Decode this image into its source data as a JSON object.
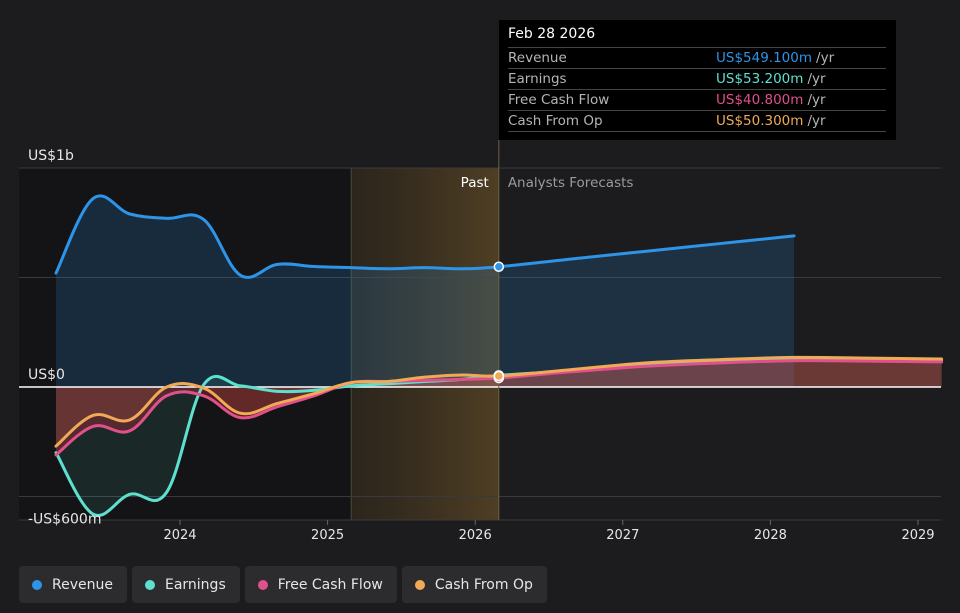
{
  "tooltip": {
    "date": "Feb 28 2026",
    "rows": [
      {
        "label": "Revenue",
        "value": "US$549.100m",
        "unit": "/yr",
        "color": "#2e94e8"
      },
      {
        "label": "Earnings",
        "value": "US$53.200m",
        "unit": "/yr",
        "color": "#5de0cf"
      },
      {
        "label": "Free Cash Flow",
        "value": "US$40.800m",
        "unit": "/yr",
        "color": "#e0508a"
      },
      {
        "label": "Cash From Op",
        "value": "US$50.300m",
        "unit": "/yr",
        "color": "#f0a956"
      }
    ]
  },
  "regions": {
    "past": "Past",
    "forecast": "Analysts Forecasts"
  },
  "legend": [
    {
      "label": "Revenue",
      "color": "#2e94e8"
    },
    {
      "label": "Earnings",
      "color": "#5de0cf"
    },
    {
      "label": "Free Cash Flow",
      "color": "#e0508a"
    },
    {
      "label": "Cash From Op",
      "color": "#f0a956"
    }
  ],
  "chart_data": {
    "type": "line",
    "title": "",
    "ylim": [
      -600,
      1000
    ],
    "y_ticks": [
      {
        "value": 1000,
        "label": "US$1b"
      },
      {
        "value": 0,
        "label": "US$0"
      },
      {
        "value": -600,
        "label": "-US$600m"
      }
    ],
    "x_ticks": [
      "2024",
      "2025",
      "2026",
      "2027",
      "2028",
      "2029"
    ],
    "xlim": [
      2023.14,
      2029.16
    ],
    "past_forecast_split": 2026.16,
    "highlight_range": [
      2025.16,
      2026.16
    ],
    "grid": true,
    "legend_position": "bottom",
    "series": [
      {
        "name": "Revenue",
        "color": "#2e94e8",
        "fill": true,
        "x": [
          2023.16,
          2023.41,
          2023.66,
          2023.91,
          2024.16,
          2024.41,
          2024.66,
          2024.91,
          2025.16,
          2025.41,
          2025.66,
          2025.91,
          2026.16,
          2026.66,
          2027.16,
          2027.66,
          2028.16
        ],
        "y": [
          520,
          860,
          790,
          770,
          765,
          510,
          560,
          550,
          545,
          540,
          545,
          540,
          549,
          585,
          620,
          655,
          690
        ]
      },
      {
        "name": "Earnings",
        "color": "#5de0cf",
        "fill": true,
        "x": [
          2023.16,
          2023.41,
          2023.66,
          2023.91,
          2024.16,
          2024.41,
          2024.66,
          2024.91,
          2025.16,
          2025.41,
          2025.66,
          2025.91,
          2026.16,
          2026.66,
          2027.16,
          2027.66,
          2028.16,
          2028.66,
          2029.16
        ],
        "y": [
          -300,
          -580,
          -490,
          -480,
          10,
          5,
          -20,
          -15,
          5,
          15,
          25,
          35,
          53,
          75,
          100,
          120,
          130,
          125,
          120
        ]
      },
      {
        "name": "Free Cash Flow",
        "color": "#e0508a",
        "fill": true,
        "x": [
          2023.16,
          2023.41,
          2023.66,
          2023.91,
          2024.16,
          2024.41,
          2024.66,
          2024.91,
          2025.16,
          2025.41,
          2025.66,
          2025.91,
          2026.16,
          2026.66,
          2027.16,
          2027.66,
          2028.16,
          2028.66,
          2029.16
        ],
        "y": [
          -310,
          -180,
          -200,
          -40,
          -40,
          -140,
          -90,
          -40,
          20,
          25,
          30,
          35,
          40.8,
          70,
          95,
          110,
          120,
          118,
          115
        ]
      },
      {
        "name": "Cash From Op",
        "color": "#f0a956",
        "fill": true,
        "x": [
          2023.16,
          2023.41,
          2023.66,
          2023.91,
          2024.16,
          2024.41,
          2024.66,
          2024.91,
          2025.16,
          2025.41,
          2025.66,
          2025.91,
          2026.16,
          2026.66,
          2027.16,
          2027.66,
          2028.16,
          2028.66,
          2029.16
        ],
        "y": [
          -270,
          -130,
          -150,
          0,
          -5,
          -120,
          -75,
          -30,
          20,
          25,
          45,
          55,
          50.3,
          80,
          110,
          125,
          135,
          132,
          128
        ]
      }
    ]
  }
}
